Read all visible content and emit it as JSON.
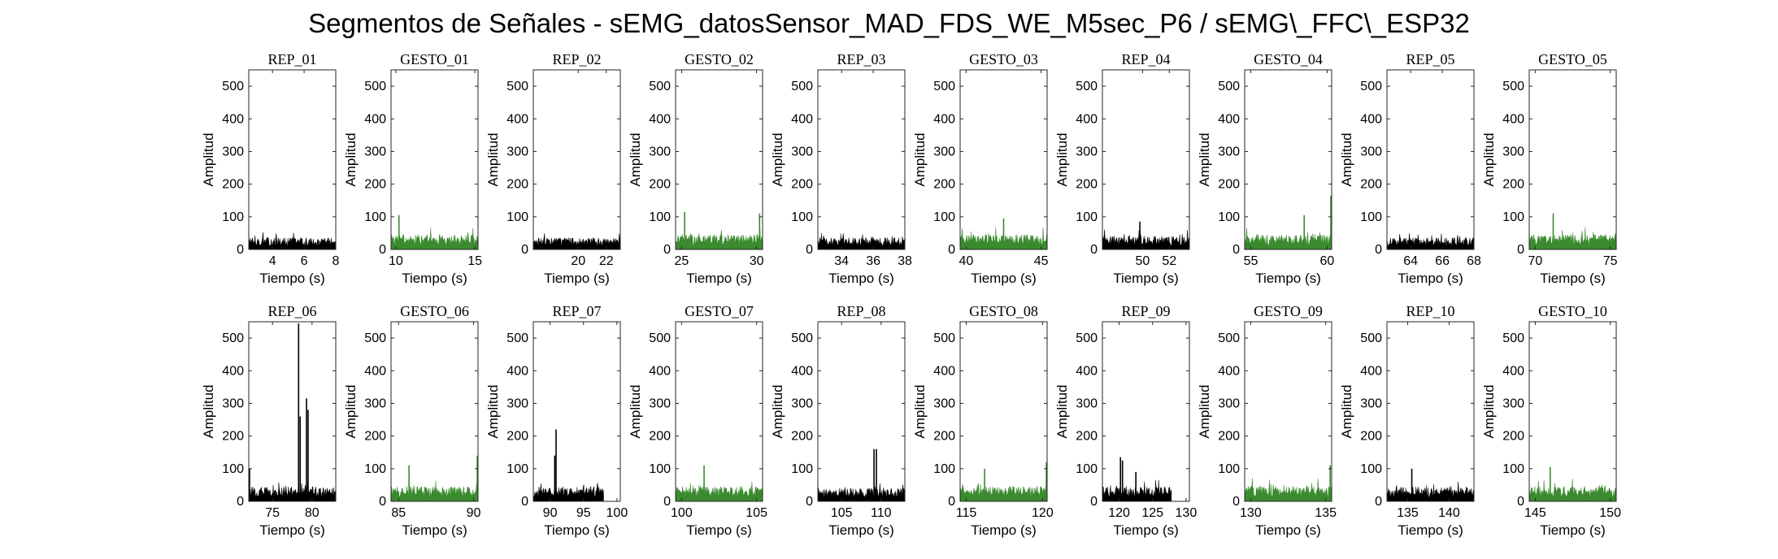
{
  "figure": {
    "suptitle": "Segmentos de Señales - sEMG_datosSensor_MAD_FDS_WE_M5sec_P6 / sEMG\\_FFC\\_ESP32"
  },
  "colors": {
    "rep": "#000000",
    "gesto": "#3a8a2e",
    "axes": "#262626"
  },
  "chart_data": [
    {
      "type": "area",
      "title": "REP_01",
      "xlabel": "Tiempo (s)",
      "ylabel": "Amplitud",
      "xlim": [
        2.5,
        8
      ],
      "ylim": [
        0,
        550
      ],
      "xticks": [
        4,
        6,
        8
      ],
      "yticks": [
        0,
        100,
        200,
        300,
        400,
        500
      ],
      "series": [
        {
          "name": "",
          "color": "#000000",
          "x_range": [
            2.5,
            8
          ],
          "base": 22,
          "noise": 26,
          "bursts": []
        }
      ]
    },
    {
      "type": "area",
      "title": "GESTO_01",
      "xlabel": "Tiempo (s)",
      "ylabel": "Amplitud",
      "xlim": [
        9.7,
        15.2
      ],
      "ylim": [
        0,
        550
      ],
      "xticks": [
        10,
        15
      ],
      "yticks": [
        0,
        100,
        200,
        300,
        400,
        500
      ],
      "series": [
        {
          "name": "",
          "color": "#3a8a2e",
          "x_range": [
            9.7,
            15.2
          ],
          "base": 28,
          "noise": 32,
          "bursts": [
            {
              "x": 10.2,
              "y": 105
            }
          ]
        }
      ]
    },
    {
      "type": "area",
      "title": "REP_02",
      "xlabel": "Tiempo (s)",
      "ylabel": "Amplitud",
      "xlim": [
        16.8,
        23
      ],
      "ylim": [
        0,
        550
      ],
      "xticks": [
        20,
        22
      ],
      "yticks": [
        0,
        100,
        200,
        300,
        400,
        500
      ],
      "series": [
        {
          "name": "",
          "color": "#000000",
          "x_range": [
            16.8,
            23
          ],
          "base": 22,
          "noise": 26,
          "bursts": []
        }
      ]
    },
    {
      "type": "area",
      "title": "GESTO_02",
      "xlabel": "Tiempo (s)",
      "ylabel": "Amplitud",
      "xlim": [
        24.6,
        30.4
      ],
      "ylim": [
        0,
        550
      ],
      "xticks": [
        25,
        30
      ],
      "yticks": [
        0,
        100,
        200,
        300,
        400,
        500
      ],
      "series": [
        {
          "name": "",
          "color": "#3a8a2e",
          "x_range": [
            24.6,
            30.4
          ],
          "base": 28,
          "noise": 34,
          "bursts": [
            {
              "x": 25.2,
              "y": 115
            },
            {
              "x": 30.2,
              "y": 110
            }
          ]
        }
      ]
    },
    {
      "type": "area",
      "title": "REP_03",
      "xlabel": "Tiempo (s)",
      "ylabel": "Amplitud",
      "xlim": [
        32.5,
        38
      ],
      "ylim": [
        0,
        550
      ],
      "xticks": [
        34,
        36,
        38
      ],
      "yticks": [
        0,
        100,
        200,
        300,
        400,
        500
      ],
      "series": [
        {
          "name": "",
          "color": "#000000",
          "x_range": [
            32.5,
            38
          ],
          "base": 22,
          "noise": 26,
          "bursts": []
        }
      ]
    },
    {
      "type": "area",
      "title": "GESTO_03",
      "xlabel": "Tiempo (s)",
      "ylabel": "Amplitud",
      "xlim": [
        39.6,
        45.4
      ],
      "ylim": [
        0,
        550
      ],
      "xticks": [
        40,
        45
      ],
      "yticks": [
        0,
        100,
        200,
        300,
        400,
        500
      ],
      "series": [
        {
          "name": "",
          "color": "#3a8a2e",
          "x_range": [
            39.6,
            45.4
          ],
          "base": 28,
          "noise": 32,
          "bursts": [
            {
              "x": 42.5,
              "y": 95
            }
          ]
        }
      ]
    },
    {
      "type": "area",
      "title": "REP_04",
      "xlabel": "Tiempo (s)",
      "ylabel": "Amplitud",
      "xlim": [
        47,
        53.5
      ],
      "ylim": [
        0,
        550
      ],
      "xticks": [
        50,
        52
      ],
      "yticks": [
        0,
        100,
        200,
        300,
        400,
        500
      ],
      "series": [
        {
          "name": "",
          "color": "#000000",
          "x_range": [
            47,
            53.5
          ],
          "base": 24,
          "noise": 30,
          "bursts": [
            {
              "x": 49.8,
              "y": 85
            }
          ]
        }
      ]
    },
    {
      "type": "area",
      "title": "GESTO_04",
      "xlabel": "Tiempo (s)",
      "ylabel": "Amplitud",
      "xlim": [
        54.6,
        60.3
      ],
      "ylim": [
        0,
        550
      ],
      "xticks": [
        55,
        60
      ],
      "yticks": [
        0,
        100,
        200,
        300,
        400,
        500
      ],
      "series": [
        {
          "name": "",
          "color": "#3a8a2e",
          "x_range": [
            54.6,
            60.3
          ],
          "base": 28,
          "noise": 32,
          "bursts": [
            {
              "x": 60.25,
              "y": 165
            },
            {
              "x": 58.5,
              "y": 105
            }
          ]
        }
      ]
    },
    {
      "type": "area",
      "title": "REP_05",
      "xlabel": "Tiempo (s)",
      "ylabel": "Amplitud",
      "xlim": [
        62.5,
        68
      ],
      "ylim": [
        0,
        550
      ],
      "xticks": [
        64,
        66,
        68
      ],
      "yticks": [
        0,
        100,
        200,
        300,
        400,
        500
      ],
      "series": [
        {
          "name": "",
          "color": "#000000",
          "x_range": [
            62.5,
            68
          ],
          "base": 22,
          "noise": 26,
          "bursts": []
        }
      ]
    },
    {
      "type": "area",
      "title": "GESTO_05",
      "xlabel": "Tiempo (s)",
      "ylabel": "Amplitud",
      "xlim": [
        69.6,
        75.4
      ],
      "ylim": [
        0,
        550
      ],
      "xticks": [
        70,
        75
      ],
      "yticks": [
        0,
        100,
        200,
        300,
        400,
        500
      ],
      "series": [
        {
          "name": "",
          "color": "#3a8a2e",
          "x_range": [
            69.6,
            75.4
          ],
          "base": 28,
          "noise": 32,
          "bursts": [
            {
              "x": 71.2,
              "y": 110
            }
          ]
        }
      ]
    },
    {
      "type": "area",
      "title": "REP_06",
      "xlabel": "Tiempo (s)",
      "ylabel": "Amplitud",
      "xlim": [
        72,
        83
      ],
      "ylim": [
        0,
        550
      ],
      "xticks": [
        75,
        80
      ],
      "yticks": [
        0,
        100,
        200,
        300,
        400,
        500
      ],
      "series": [
        {
          "name": "",
          "color": "#000000",
          "x_range": [
            72,
            83
          ],
          "base": 26,
          "noise": 34,
          "bursts": [
            {
              "x": 78.3,
              "y": 545
            },
            {
              "x": 78.5,
              "y": 260
            },
            {
              "x": 79.3,
              "y": 315
            },
            {
              "x": 79.5,
              "y": 280
            },
            {
              "x": 72.1,
              "y": 100
            }
          ]
        }
      ]
    },
    {
      "type": "area",
      "title": "GESTO_06",
      "xlabel": "Tiempo (s)",
      "ylabel": "Amplitud",
      "xlim": [
        84.5,
        90.3
      ],
      "ylim": [
        0,
        550
      ],
      "xticks": [
        85,
        90
      ],
      "yticks": [
        0,
        100,
        200,
        300,
        400,
        500
      ],
      "series": [
        {
          "name": "",
          "color": "#3a8a2e",
          "x_range": [
            84.5,
            90.3
          ],
          "base": 28,
          "noise": 32,
          "bursts": [
            {
              "x": 85.7,
              "y": 110
            },
            {
              "x": 90.25,
              "y": 140
            }
          ]
        }
      ]
    },
    {
      "type": "area",
      "title": "REP_07",
      "xlabel": "Tiempo (s)",
      "ylabel": "Amplitud",
      "xlim": [
        87.5,
        100.5
      ],
      "ylim": [
        0,
        550
      ],
      "xticks": [
        90,
        95,
        100
      ],
      "yticks": [
        0,
        100,
        200,
        300,
        400,
        500
      ],
      "series": [
        {
          "name": "",
          "color": "#000000",
          "x_range": [
            87.5,
            98
          ],
          "base": 26,
          "noise": 34,
          "bursts": [
            {
              "x": 90.9,
              "y": 220
            },
            {
              "x": 90.7,
              "y": 140
            }
          ]
        }
      ]
    },
    {
      "type": "area",
      "title": "GESTO_07",
      "xlabel": "Tiempo (s)",
      "ylabel": "Amplitud",
      "xlim": [
        99.6,
        105.4
      ],
      "ylim": [
        0,
        550
      ],
      "xticks": [
        100,
        105
      ],
      "yticks": [
        0,
        100,
        200,
        300,
        400,
        500
      ],
      "series": [
        {
          "name": "",
          "color": "#3a8a2e",
          "x_range": [
            99.6,
            105.4
          ],
          "base": 28,
          "noise": 32,
          "bursts": [
            {
              "x": 101.5,
              "y": 110
            }
          ]
        }
      ]
    },
    {
      "type": "area",
      "title": "REP_08",
      "xlabel": "Tiempo (s)",
      "ylabel": "Amplitud",
      "xlim": [
        102,
        113
      ],
      "ylim": [
        0,
        550
      ],
      "xticks": [
        105,
        110
      ],
      "yticks": [
        0,
        100,
        200,
        300,
        400,
        500
      ],
      "series": [
        {
          "name": "",
          "color": "#000000",
          "x_range": [
            102,
            113
          ],
          "base": 24,
          "noise": 30,
          "bursts": [
            {
              "x": 109.1,
              "y": 160
            },
            {
              "x": 109.4,
              "y": 160
            }
          ]
        }
      ]
    },
    {
      "type": "area",
      "title": "GESTO_08",
      "xlabel": "Tiempo (s)",
      "ylabel": "Amplitud",
      "xlim": [
        114.6,
        120.3
      ],
      "ylim": [
        0,
        550
      ],
      "xticks": [
        115,
        120
      ],
      "yticks": [
        0,
        100,
        200,
        300,
        400,
        500
      ],
      "series": [
        {
          "name": "",
          "color": "#3a8a2e",
          "x_range": [
            114.6,
            120.3
          ],
          "base": 28,
          "noise": 32,
          "bursts": [
            {
              "x": 120.25,
              "y": 120
            },
            {
              "x": 116.2,
              "y": 100
            }
          ]
        }
      ]
    },
    {
      "type": "area",
      "title": "REP_09",
      "xlabel": "Tiempo (s)",
      "ylabel": "Amplitud",
      "xlim": [
        117.5,
        130.5
      ],
      "ylim": [
        0,
        550
      ],
      "xticks": [
        120,
        125,
        130
      ],
      "yticks": [
        0,
        100,
        200,
        300,
        400,
        500
      ],
      "series": [
        {
          "name": "",
          "color": "#000000",
          "x_range": [
            117.5,
            127.8
          ],
          "base": 26,
          "noise": 32,
          "bursts": [
            {
              "x": 120.2,
              "y": 135
            },
            {
              "x": 120.5,
              "y": 125
            },
            {
              "x": 122.5,
              "y": 90
            }
          ]
        }
      ]
    },
    {
      "type": "area",
      "title": "GESTO_09",
      "xlabel": "Tiempo (s)",
      "ylabel": "Amplitud",
      "xlim": [
        129.6,
        135.4
      ],
      "ylim": [
        0,
        550
      ],
      "xticks": [
        130,
        135
      ],
      "yticks": [
        0,
        100,
        200,
        300,
        400,
        500
      ],
      "series": [
        {
          "name": "",
          "color": "#3a8a2e",
          "x_range": [
            129.6,
            135.4
          ],
          "base": 28,
          "noise": 32,
          "bursts": [
            {
              "x": 135.3,
              "y": 110
            }
          ]
        }
      ]
    },
    {
      "type": "area",
      "title": "REP_10",
      "xlabel": "Tiempo (s)",
      "ylabel": "Amplitud",
      "xlim": [
        132.5,
        143
      ],
      "ylim": [
        0,
        550
      ],
      "xticks": [
        135,
        140
      ],
      "yticks": [
        0,
        100,
        200,
        300,
        400,
        500
      ],
      "series": [
        {
          "name": "",
          "color": "#000000",
          "x_range": [
            132.5,
            143
          ],
          "base": 26,
          "noise": 34,
          "bursts": [
            {
              "x": 135.5,
              "y": 100
            }
          ]
        }
      ]
    },
    {
      "type": "area",
      "title": "GESTO_10",
      "xlabel": "Tiempo (s)",
      "ylabel": "Amplitud",
      "xlim": [
        144.6,
        150.4
      ],
      "ylim": [
        0,
        550
      ],
      "xticks": [
        145,
        150
      ],
      "yticks": [
        0,
        100,
        200,
        300,
        400,
        500
      ],
      "series": [
        {
          "name": "",
          "color": "#3a8a2e",
          "x_range": [
            144.6,
            150.4
          ],
          "base": 28,
          "noise": 32,
          "bursts": [
            {
              "x": 146.0,
              "y": 105
            }
          ]
        }
      ]
    }
  ]
}
